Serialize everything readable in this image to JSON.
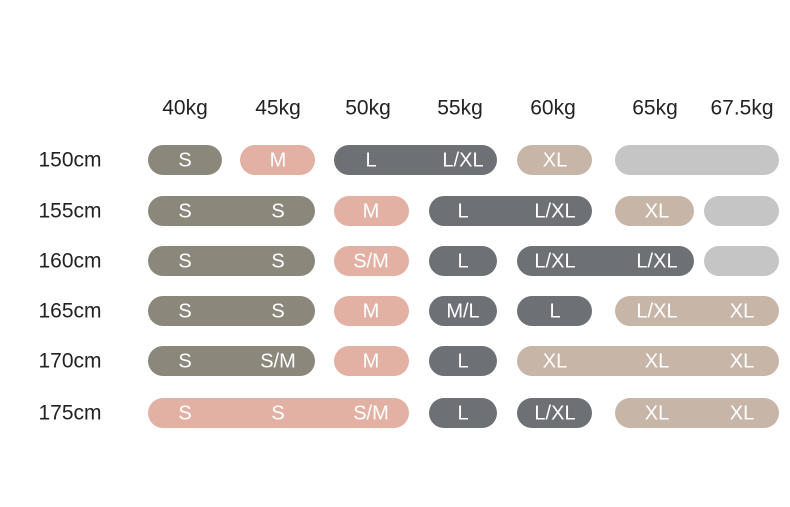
{
  "table": {
    "columns": [
      "40kg",
      "45kg",
      "50kg",
      "55kg",
      "60kg",
      "65kg",
      "67.5kg"
    ],
    "rows": [
      {
        "label": "150cm",
        "pills": [
          {
            "color": "#8c877b",
            "cells": [
              "S"
            ]
          },
          {
            "color": "#e3b1a3",
            "cells": [
              "M"
            ]
          },
          {
            "color": "#6d7176",
            "cells": [
              "L",
              "L/XL"
            ]
          },
          {
            "color": "#c7b6a7",
            "cells": [
              "XL"
            ]
          },
          {
            "color": "#c5c5c5",
            "cells": [
              null,
              null
            ]
          }
        ]
      },
      {
        "label": "155cm",
        "pills": [
          {
            "color": "#8c877b",
            "cells": [
              "S",
              "S"
            ]
          },
          {
            "color": "#e3b1a3",
            "cells": [
              "M"
            ]
          },
          {
            "color": "#6d7176",
            "cells": [
              "L",
              "L/XL"
            ]
          },
          {
            "color": "#c7b6a7",
            "cells": [
              "XL"
            ]
          },
          {
            "color": "#c5c5c5",
            "cells": [
              null
            ]
          }
        ]
      },
      {
        "label": "160cm",
        "pills": [
          {
            "color": "#8c877b",
            "cells": [
              "S",
              "S"
            ]
          },
          {
            "color": "#e3b1a3",
            "cells": [
              "S/M"
            ]
          },
          {
            "color": "#6d7176",
            "cells": [
              "L"
            ]
          },
          {
            "color": "#6d7176",
            "cells": [
              "L/XL",
              "L/XL"
            ]
          },
          {
            "color": "#c5c5c5",
            "cells": [
              null
            ]
          }
        ]
      },
      {
        "label": "165cm",
        "pills": [
          {
            "color": "#8c877b",
            "cells": [
              "S",
              "S"
            ]
          },
          {
            "color": "#e3b1a3",
            "cells": [
              "M"
            ]
          },
          {
            "color": "#6d7176",
            "cells": [
              "M/L"
            ]
          },
          {
            "color": "#6d7176",
            "cells": [
              "L"
            ]
          },
          {
            "color": "#c7b6a7",
            "cells": [
              "L/XL",
              "XL"
            ]
          }
        ]
      },
      {
        "label": "170cm",
        "pills": [
          {
            "color": "#8c877b",
            "cells": [
              "S",
              "S/M"
            ]
          },
          {
            "color": "#e3b1a3",
            "cells": [
              "M"
            ]
          },
          {
            "color": "#6d7176",
            "cells": [
              "L"
            ]
          },
          {
            "color": "#c7b6a7",
            "cells": [
              "XL",
              "XL",
              "XL"
            ]
          }
        ]
      },
      {
        "label": "175cm",
        "pills": [
          {
            "color": "#e3b1a3",
            "cells": [
              "S",
              "S",
              "S/M"
            ]
          },
          {
            "color": "#6d7176",
            "cells": [
              "L"
            ]
          },
          {
            "color": "#6d7176",
            "cells": [
              "L/XL"
            ]
          },
          {
            "color": "#c7b6a7",
            "cells": [
              "XL",
              "XL"
            ]
          }
        ]
      }
    ]
  }
}
